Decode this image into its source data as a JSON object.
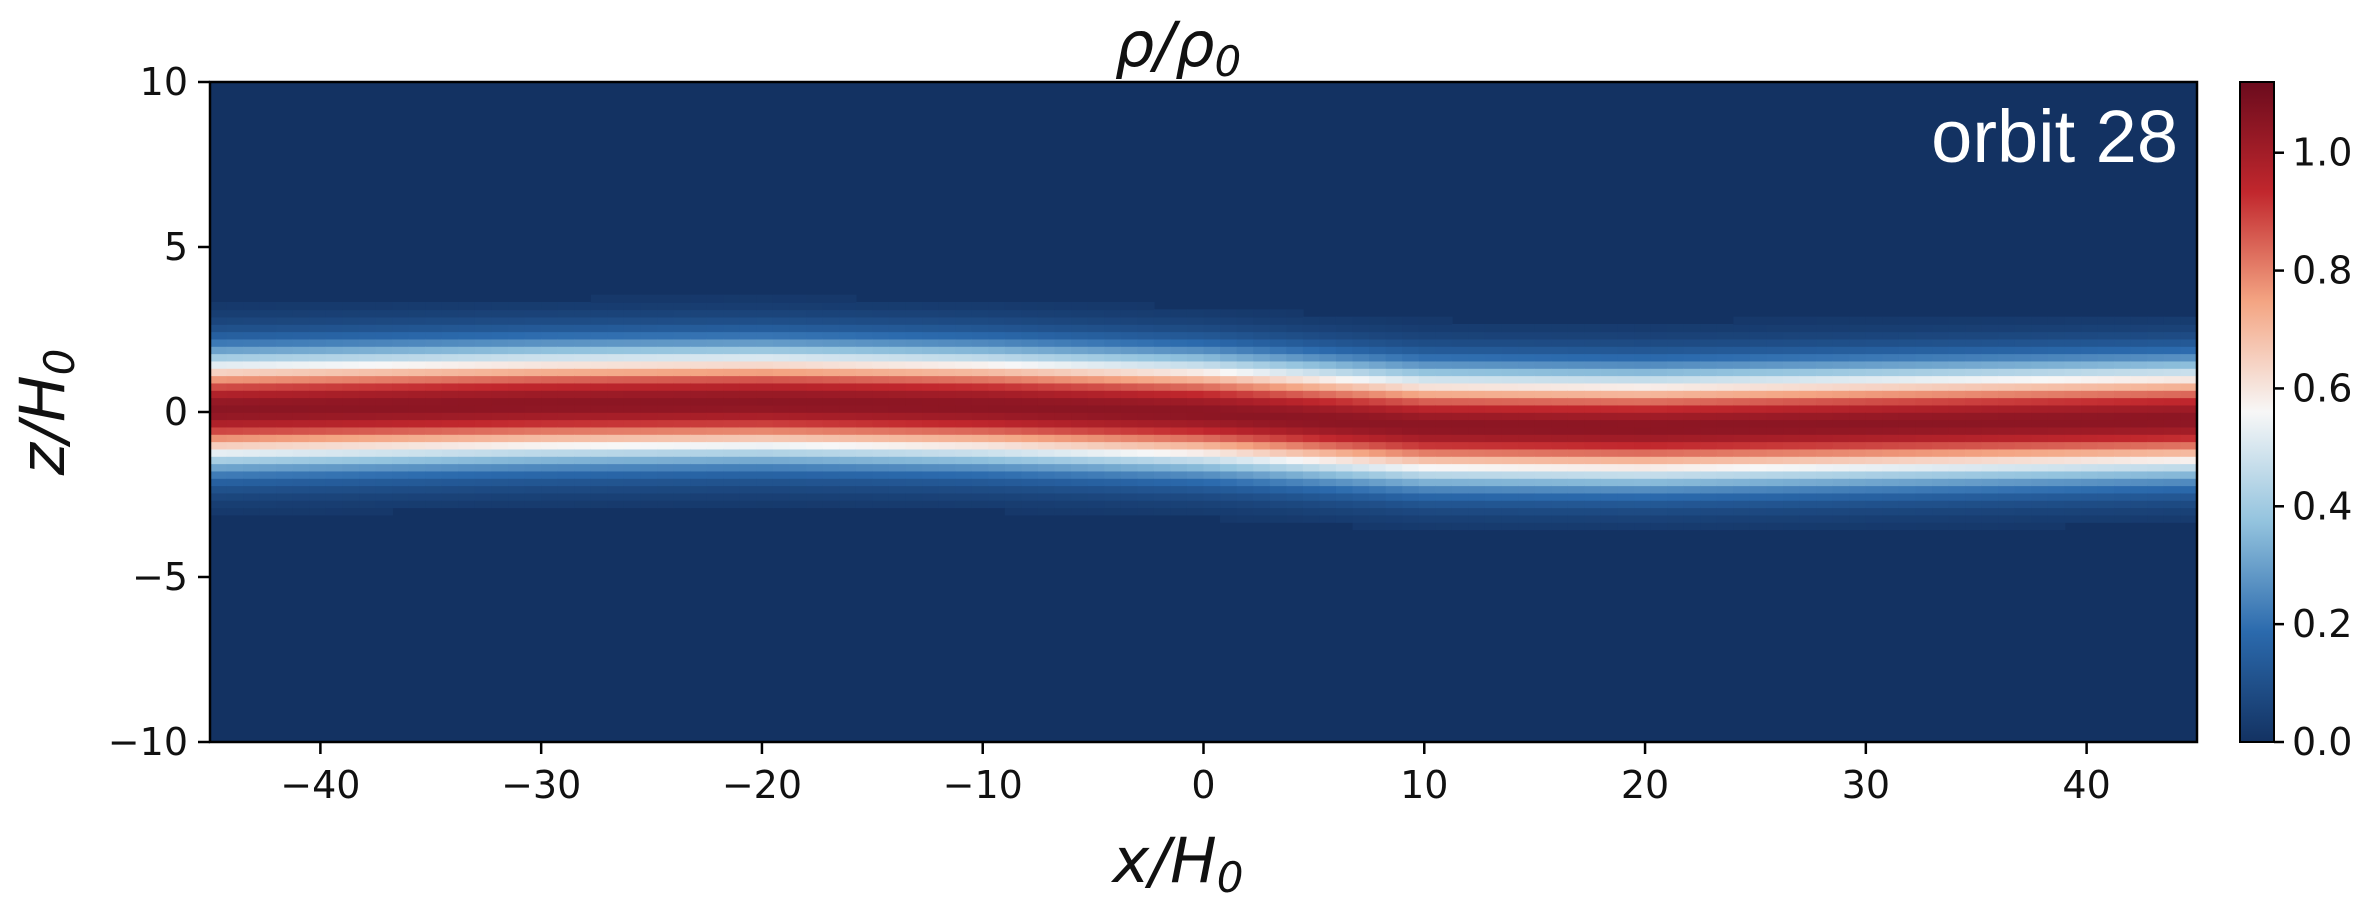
{
  "chart_data": {
    "type": "heatmap",
    "title": "ρ/ρ",
    "title_sub": "0",
    "xlabel": "x/H",
    "xlabel_sub": "0",
    "ylabel": "z/H",
    "ylabel_sub": "0",
    "annotation": "orbit 28",
    "xlim": [
      -45,
      45
    ],
    "ylim": [
      -10,
      10
    ],
    "x_ticks": [
      -40,
      -30,
      -20,
      -10,
      0,
      10,
      20,
      30,
      40
    ],
    "x_tick_labels": [
      "−40",
      "−30",
      "−20",
      "−10",
      "0",
      "10",
      "20",
      "30",
      "40"
    ],
    "y_ticks": [
      -10,
      -5,
      0,
      5,
      10
    ],
    "y_tick_labels": [
      "−10",
      "−5",
      "0",
      "5",
      "10"
    ],
    "colorbar": {
      "range": [
        0,
        1.12
      ],
      "ticks": [
        0.0,
        0.2,
        0.4,
        0.6,
        0.8,
        1.0
      ],
      "tick_labels": [
        "0.0",
        "0.2",
        "0.4",
        "0.6",
        "0.8",
        "1.0"
      ],
      "colormap": "RdBu_r",
      "stops": [
        "#133262",
        "#2b6aad",
        "#93c3de",
        "#f7f7f7",
        "#f4a583",
        "#c1272d",
        "#6b0b1d"
      ]
    },
    "midplane": {
      "x": [
        -45,
        -40,
        -30,
        -20,
        -10,
        0,
        10,
        20,
        30,
        40,
        45
      ],
      "z_center": [
        0.1,
        0.15,
        0.25,
        0.3,
        0.2,
        0.0,
        -0.4,
        -0.45,
        -0.35,
        -0.25,
        -0.2
      ],
      "half_width": 1.6,
      "peak_density": 1.05
    }
  }
}
